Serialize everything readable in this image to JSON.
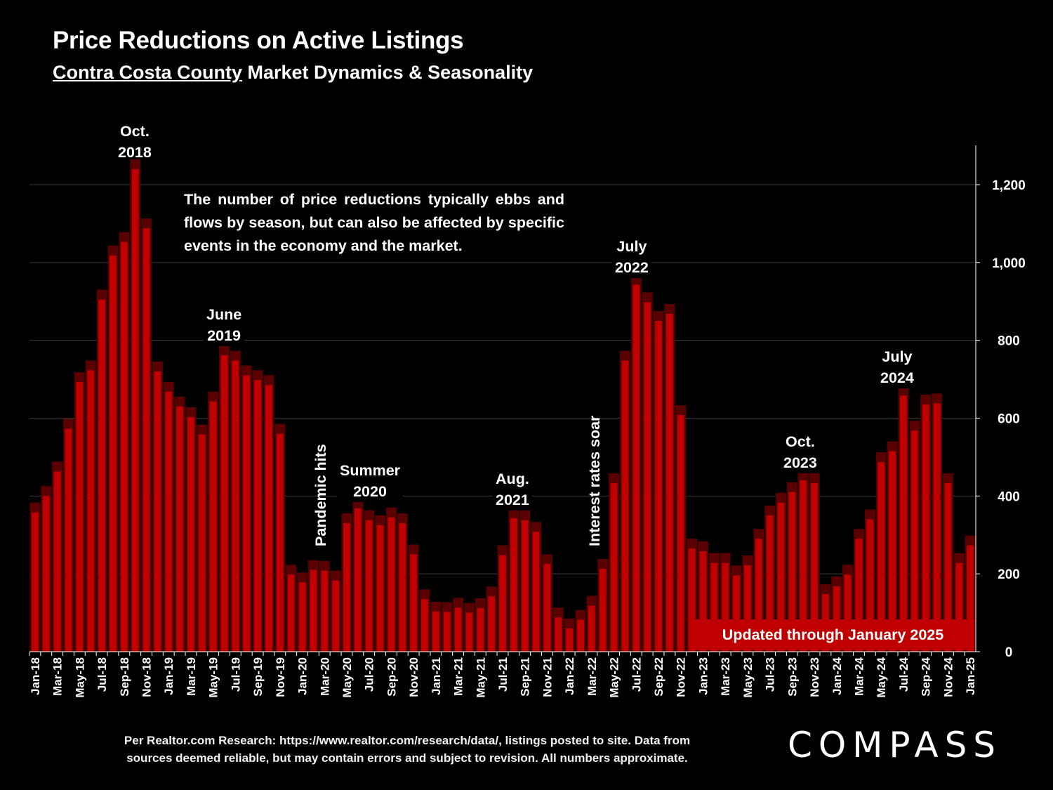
{
  "header": {
    "title": "Price Reductions on Active Listings",
    "subtitle_county": "Contra Costa County",
    "subtitle_rest": " Market Dynamics & Seasonality"
  },
  "note": "The number of price reductions typically ebbs and flows by season, but can also be affected by specific events in the economy and the market.",
  "annotations": {
    "oct2018": {
      "line1": "Oct.",
      "line2": "2018"
    },
    "june2019": {
      "line1": "June",
      "line2": "2019"
    },
    "pandemic": "Pandemic hits",
    "summer2020": {
      "line1": "Summer",
      "line2": "2020"
    },
    "aug2021": {
      "line1": "Aug.",
      "line2": "2021"
    },
    "rates": "Interest rates soar",
    "july2022": {
      "line1": "July",
      "line2": "2022"
    },
    "oct2023": {
      "line1": "Oct.",
      "line2": "2023"
    },
    "july2024": {
      "line1": "July",
      "line2": "2024"
    }
  },
  "updated_badge": "Updated through January 2025",
  "footer": {
    "line1": "Per Realtor.com Research:  https://www.realtor.com/research/data/, listings posted to site. Data from",
    "line2": "sources deemed reliable, but may contain errors and subject to revision. All numbers approximate."
  },
  "logo": "COMPASS",
  "colors": {
    "bar": "#c00000",
    "bar_edge": "#5a0000",
    "background": "#000000",
    "grid": "#3a3a3a"
  },
  "chart_data": {
    "type": "bar",
    "ylim": [
      0,
      1300
    ],
    "yticks": [
      0,
      200,
      400,
      600,
      800,
      1000,
      1200
    ],
    "ytick_labels": [
      "0",
      "200",
      "400",
      "600",
      "800",
      "1,000",
      "1,200"
    ],
    "y_axis_side": "right",
    "grid": true,
    "categories": [
      "Jan-18",
      "Feb-18",
      "Mar-18",
      "Apr-18",
      "May-18",
      "Jun-18",
      "Jul-18",
      "Aug-18",
      "Sep-18",
      "Oct-18",
      "Nov-18",
      "Dec-18",
      "Jan-19",
      "Feb-19",
      "Mar-19",
      "Apr-19",
      "May-19",
      "Jun-19",
      "Jul-19",
      "Aug-19",
      "Sep-19",
      "Oct-19",
      "Nov-19",
      "Dec-19",
      "Jan-20",
      "Feb-20",
      "Mar-20",
      "Apr-20",
      "May-20",
      "Jun-20",
      "Jul-20",
      "Aug-20",
      "Sep-20",
      "Oct-20",
      "Nov-20",
      "Dec-20",
      "Jan-21",
      "Feb-21",
      "Mar-21",
      "Apr-21",
      "May-21",
      "Jun-21",
      "Jul-21",
      "Aug-21",
      "Sep-21",
      "Oct-21",
      "Nov-21",
      "Dec-21",
      "Jan-22",
      "Feb-22",
      "Mar-22",
      "Apr-22",
      "May-22",
      "Jun-22",
      "Jul-22",
      "Aug-22",
      "Sep-22",
      "Oct-22",
      "Nov-22",
      "Dec-22",
      "Jan-23",
      "Feb-23",
      "Mar-23",
      "Apr-23",
      "May-23",
      "Jun-23",
      "Jul-23",
      "Aug-23",
      "Sep-23",
      "Oct-23",
      "Nov-23",
      "Dec-23",
      "Jan-24",
      "Feb-24",
      "Mar-24",
      "Apr-24",
      "May-24",
      "Jun-24",
      "Jul-24",
      "Aug-24",
      "Sep-24",
      "Oct-24",
      "Nov-24",
      "Dec-24",
      "Jan-25"
    ],
    "values": [
      358,
      400,
      463,
      573,
      693,
      723,
      905,
      1018,
      1053,
      1240,
      1088,
      720,
      668,
      630,
      603,
      558,
      643,
      762,
      748,
      710,
      698,
      685,
      560,
      198,
      178,
      210,
      208,
      183,
      330,
      368,
      338,
      325,
      345,
      330,
      250,
      135,
      103,
      102,
      113,
      100,
      112,
      142,
      248,
      343,
      338,
      308,
      225,
      88,
      60,
      82,
      118,
      213,
      433,
      748,
      943,
      898,
      850,
      868,
      608,
      265,
      258,
      228,
      228,
      196,
      222,
      290,
      350,
      383,
      410,
      440,
      433,
      148,
      168,
      198,
      290,
      340,
      487,
      515,
      658,
      568,
      635,
      638,
      433,
      228,
      273
    ]
  }
}
